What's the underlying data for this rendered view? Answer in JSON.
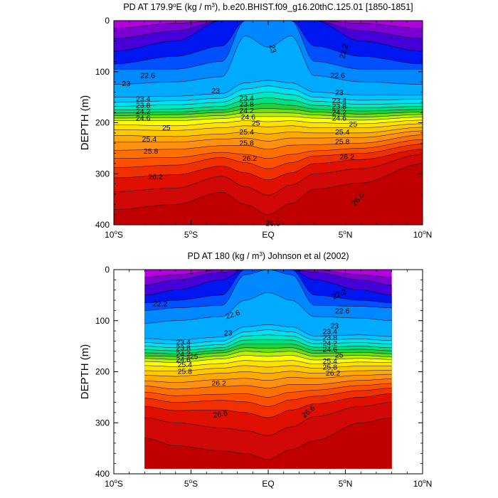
{
  "figure": {
    "panels": [
      {
        "title_main": "PD AT 179.9",
        "title_deg": "o",
        "title_rest": "E (kg / m",
        "title_sup": "3",
        "title_tail": "), b.e20.BHIST.f09_g16.20thC.125.01 [1850-1851]"
      },
      {
        "title_main": "PD AT 180 (kg / m",
        "title_sup": "3",
        "title_tail": ") Johnson et al (2002)"
      }
    ]
  },
  "chart_data": [
    {
      "type": "heatmap",
      "subtype": "filled-contour",
      "title": "PD AT 179.9°E (kg / m³), b.e20.BHIST.f09_g16.20thC.125.01 [1850-1851]",
      "xlabel": "",
      "ylabel": "DEPTH (m)",
      "xlim": [
        -10,
        10
      ],
      "ylim": [
        400,
        0
      ],
      "x_ticks": [
        -10,
        -5,
        0,
        5,
        10
      ],
      "x_tick_labels": [
        {
          "num": "10",
          "sup": "o",
          "hemi": "S"
        },
        {
          "num": "5",
          "sup": "o",
          "hemi": "S"
        },
        {
          "num": "EQ",
          "sup": "",
          "hemi": ""
        },
        {
          "num": "5",
          "sup": "o",
          "hemi": "N"
        },
        {
          "num": "10",
          "sup": "o",
          "hemi": "N"
        }
      ],
      "y_ticks": [
        0,
        100,
        200,
        300,
        400
      ],
      "data_x_range": [
        -10,
        10
      ],
      "depth_max": 400,
      "contour_levels": [
        21.8,
        22.0,
        22.2,
        22.4,
        22.6,
        22.8,
        23.0,
        23.2,
        23.4,
        23.6,
        23.8,
        24.0,
        24.2,
        24.4,
        24.6,
        24.8,
        25.0,
        25.2,
        25.4,
        25.6,
        25.8,
        26.0,
        26.2,
        26.4,
        26.6
      ],
      "contour_depths": [
        {
          "lat": -10,
          "depths": [
            0,
            15,
            35,
            60,
            85,
            95,
            125,
            150,
            160,
            168,
            175,
            181,
            186,
            191,
            196,
            204,
            214,
            225,
            238,
            254,
            270,
            288,
            308,
            335,
            370
          ]
        },
        {
          "lat": -6,
          "depths": [
            0,
            5,
            20,
            40,
            70,
            95,
            120,
            148,
            157,
            165,
            173,
            179,
            184,
            190,
            196,
            206,
            215,
            227,
            238,
            252,
            268,
            283,
            302,
            328,
            360
          ]
        },
        {
          "lat": -3,
          "depths": [
            0,
            0,
            0,
            0,
            50,
            80,
            110,
            143,
            152,
            160,
            168,
            175,
            180,
            186,
            192,
            200,
            210,
            222,
            232,
            245,
            258,
            268,
            285,
            305,
            336
          ]
        },
        {
          "lat": -1.5,
          "depths": [
            0,
            0,
            0,
            0,
            0,
            0,
            30,
            122,
            134,
            145,
            156,
            166,
            174,
            181,
            188,
            196,
            206,
            218,
            230,
            244,
            262,
            278,
            298,
            325,
            360
          ]
        },
        {
          "lat": 0,
          "depths": [
            0,
            0,
            0,
            0,
            0,
            0,
            52,
            117,
            128,
            140,
            151,
            162,
            172,
            180,
            188,
            198,
            208,
            222,
            236,
            252,
            270,
            290,
            312,
            342,
            380
          ]
        },
        {
          "lat": 1.5,
          "depths": [
            0,
            0,
            0,
            0,
            0,
            0,
            30,
            122,
            134,
            145,
            156,
            166,
            174,
            181,
            188,
            196,
            206,
            218,
            230,
            244,
            262,
            278,
            298,
            322,
            358
          ]
        },
        {
          "lat": 3,
          "depths": [
            0,
            0,
            0,
            0,
            50,
            80,
            108,
            140,
            150,
            158,
            166,
            173,
            179,
            185,
            191,
            200,
            210,
            220,
            230,
            243,
            255,
            265,
            280,
            300,
            330
          ]
        },
        {
          "lat": 6,
          "depths": [
            0,
            5,
            20,
            40,
            70,
            95,
            120,
            146,
            156,
            164,
            171,
            177,
            183,
            189,
            195,
            202,
            210,
            220,
            229,
            240,
            250,
            260,
            272,
            290,
            318
          ]
        },
        {
          "lat": 10,
          "depths": [
            0,
            15,
            35,
            60,
            85,
            95,
            125,
            146,
            154,
            162,
            168,
            174,
            179,
            184,
            189,
            195,
            202,
            209,
            216,
            224,
            233,
            242,
            252,
            262,
            280
          ]
        }
      ],
      "contour_labels": [
        {
          "text": "23",
          "lat": 0.3,
          "depth": 55,
          "angle": 75
        },
        {
          "text": "22.2",
          "lat": 4.9,
          "depth": 60,
          "angle": -75
        },
        {
          "text": "22.6",
          "lat": -7.8,
          "depth": 107,
          "angle": 0
        },
        {
          "text": "22.6",
          "lat": 4.5,
          "depth": 107,
          "angle": 0
        },
        {
          "text": "23",
          "lat": -9.2,
          "depth": 123,
          "angle": 0
        },
        {
          "text": "23",
          "lat": -3.4,
          "depth": 137,
          "angle": 0
        },
        {
          "text": "23",
          "lat": 4.6,
          "depth": 141,
          "angle": 0
        },
        {
          "text": "23.4",
          "lat": -8.1,
          "depth": 153,
          "angle": 0
        },
        {
          "text": "23.8",
          "lat": -8.1,
          "depth": 166,
          "angle": 0
        },
        {
          "text": "24.2",
          "lat": -8.1,
          "depth": 178,
          "angle": 0
        },
        {
          "text": "24.6",
          "lat": -8.1,
          "depth": 191,
          "angle": 0
        },
        {
          "text": "25",
          "lat": -6.6,
          "depth": 210,
          "angle": 0
        },
        {
          "text": "25.4",
          "lat": -7.7,
          "depth": 232,
          "angle": 0
        },
        {
          "text": "25.8",
          "lat": -7.6,
          "depth": 256,
          "angle": 0
        },
        {
          "text": "26.2",
          "lat": -7.3,
          "depth": 306,
          "angle": 0
        },
        {
          "text": "23.4",
          "lat": -1.4,
          "depth": 152,
          "angle": 0
        },
        {
          "text": "23.8",
          "lat": -1.4,
          "depth": 164,
          "angle": 0
        },
        {
          "text": "24.2",
          "lat": -1.4,
          "depth": 176,
          "angle": 0
        },
        {
          "text": "24.6",
          "lat": -1.3,
          "depth": 189,
          "angle": 0
        },
        {
          "text": "25",
          "lat": -0.8,
          "depth": 201,
          "angle": 0
        },
        {
          "text": "25.4",
          "lat": -1.4,
          "depth": 218,
          "angle": 0
        },
        {
          "text": "25.8",
          "lat": -1.4,
          "depth": 240,
          "angle": 0
        },
        {
          "text": "26.2",
          "lat": -1.2,
          "depth": 270,
          "angle": 0
        },
        {
          "text": "23.4",
          "lat": 4.6,
          "depth": 157,
          "angle": 0
        },
        {
          "text": "23.8",
          "lat": 4.6,
          "depth": 168,
          "angle": 0
        },
        {
          "text": "24.2",
          "lat": 4.6,
          "depth": 180,
          "angle": 0
        },
        {
          "text": "24.6",
          "lat": 4.6,
          "depth": 191,
          "angle": 0
        },
        {
          "text": "25",
          "lat": 5.5,
          "depth": 203,
          "angle": 0
        },
        {
          "text": "25.4",
          "lat": 4.8,
          "depth": 218,
          "angle": 0
        },
        {
          "text": "25.8",
          "lat": 4.8,
          "depth": 237,
          "angle": 0
        },
        {
          "text": "26.2",
          "lat": 5.1,
          "depth": 267,
          "angle": 0
        },
        {
          "text": "26.6",
          "lat": 5.8,
          "depth": 350,
          "angle": -48
        },
        {
          "text": "26.6",
          "lat": 0.3,
          "depth": 397,
          "angle": 0
        }
      ]
    },
    {
      "type": "heatmap",
      "subtype": "filled-contour",
      "title": "PD AT 180 (kg / m³) Johnson et al (2002)",
      "xlabel": "",
      "ylabel": "DEPTH (m)",
      "xlim": [
        -10,
        10
      ],
      "ylim": [
        400,
        0
      ],
      "x_ticks": [
        -10,
        -5,
        0,
        5,
        10
      ],
      "x_tick_labels": [
        {
          "num": "10",
          "sup": "o",
          "hemi": "S"
        },
        {
          "num": "5",
          "sup": "o",
          "hemi": "S"
        },
        {
          "num": "EQ",
          "sup": "",
          "hemi": ""
        },
        {
          "num": "5",
          "sup": "o",
          "hemi": "N"
        },
        {
          "num": "10",
          "sup": "o",
          "hemi": "N"
        }
      ],
      "y_ticks": [
        0,
        100,
        200,
        300,
        400
      ],
      "data_x_range": [
        -8,
        8
      ],
      "depth_max": 390,
      "contour_levels": [
        21.8,
        22.0,
        22.2,
        22.4,
        22.6,
        22.8,
        23.0,
        23.2,
        23.4,
        23.6,
        23.8,
        24.0,
        24.2,
        24.4,
        24.6,
        24.8,
        25.0,
        25.2,
        25.4,
        25.6,
        25.8,
        26.0,
        26.2,
        26.4,
        26.6
      ],
      "contour_depths": [
        {
          "lat": -8,
          "depths": [
            0,
            15,
            30,
            50,
            65,
            80,
            105,
            135,
            143,
            150,
            157,
            163,
            169,
            174,
            180,
            188,
            198,
            207,
            218,
            228,
            240,
            252,
            268,
            290,
            330
          ]
        },
        {
          "lat": -6,
          "depths": [
            0,
            10,
            20,
            40,
            60,
            75,
            100,
            138,
            146,
            153,
            159,
            165,
            170,
            176,
            182,
            190,
            199,
            209,
            221,
            234,
            247,
            260,
            276,
            300,
            345
          ]
        },
        {
          "lat": -3,
          "depths": [
            0,
            0,
            5,
            20,
            50,
            70,
            92,
            132,
            140,
            147,
            153,
            158,
            163,
            169,
            175,
            184,
            193,
            203,
            215,
            229,
            244,
            256,
            275,
            310,
            355
          ]
        },
        {
          "lat": -1.5,
          "depths": [
            0,
            0,
            0,
            0,
            0,
            10,
            60,
            112,
            122,
            130,
            138,
            146,
            153,
            160,
            168,
            178,
            188,
            200,
            213,
            227,
            243,
            259,
            280,
            315,
            360
          ]
        },
        {
          "lat": 0,
          "depths": [
            0,
            0,
            0,
            0,
            0,
            0,
            45,
            108,
            118,
            128,
            137,
            146,
            154,
            162,
            170,
            180,
            191,
            203,
            217,
            232,
            250,
            268,
            290,
            325,
            372
          ]
        },
        {
          "lat": 1.5,
          "depths": [
            0,
            0,
            0,
            0,
            0,
            10,
            60,
            112,
            122,
            130,
            138,
            146,
            153,
            160,
            168,
            178,
            188,
            199,
            211,
            225,
            240,
            255,
            275,
            308,
            352
          ]
        },
        {
          "lat": 3,
          "depths": [
            0,
            0,
            5,
            20,
            50,
            70,
            92,
            130,
            138,
            145,
            152,
            158,
            164,
            170,
            177,
            185,
            193,
            203,
            213,
            225,
            236,
            248,
            263,
            288,
            335
          ]
        },
        {
          "lat": 6,
          "depths": [
            0,
            10,
            20,
            40,
            60,
            72,
            95,
            128,
            136,
            143,
            150,
            156,
            162,
            168,
            174,
            181,
            189,
            198,
            207,
            217,
            227,
            237,
            250,
            268,
            300
          ]
        },
        {
          "lat": 8,
          "depths": [
            0,
            15,
            30,
            50,
            65,
            75,
            100,
            131,
            139,
            146,
            153,
            159,
            165,
            171,
            176,
            182,
            189,
            197,
            205,
            214,
            223,
            232,
            243,
            260,
            290
          ]
        }
      ],
      "contour_labels": [
        {
          "text": "22.2",
          "lat": -7.0,
          "depth": 67,
          "angle": 0
        },
        {
          "text": "22.2",
          "lat": 4.6,
          "depth": 48,
          "angle": -25
        },
        {
          "text": "22.6",
          "lat": -2.3,
          "depth": 88,
          "angle": -18
        },
        {
          "text": "22.6",
          "lat": 4.8,
          "depth": 81,
          "angle": 0
        },
        {
          "text": "23",
          "lat": -2.6,
          "depth": 124,
          "angle": 0
        },
        {
          "text": "23",
          "lat": 4.3,
          "depth": 110,
          "angle": 0
        },
        {
          "text": "23.4",
          "lat": 4.0,
          "depth": 121,
          "angle": 0
        },
        {
          "text": "23.8",
          "lat": 4.0,
          "depth": 133,
          "angle": 0
        },
        {
          "text": "24.2",
          "lat": 4.0,
          "depth": 144,
          "angle": 0
        },
        {
          "text": "24.6",
          "lat": 4.0,
          "depth": 156,
          "angle": 0
        },
        {
          "text": "25",
          "lat": 4.6,
          "depth": 167,
          "angle": 0
        },
        {
          "text": "25.4",
          "lat": 4.0,
          "depth": 179,
          "angle": 0
        },
        {
          "text": "25.8",
          "lat": 4.0,
          "depth": 191,
          "angle": 0
        },
        {
          "text": "26.2",
          "lat": 4.2,
          "depth": 203,
          "angle": 0
        },
        {
          "text": "23.4",
          "lat": -5.5,
          "depth": 142,
          "angle": 0
        },
        {
          "text": "23.8",
          "lat": -5.5,
          "depth": 153,
          "angle": 0
        },
        {
          "text": "24.2",
          "lat": -5.5,
          "depth": 165,
          "angle": 0
        },
        {
          "text": "24.6",
          "lat": -5.5,
          "depth": 176,
          "angle": 0
        },
        {
          "text": "25",
          "lat": -4.8,
          "depth": 170,
          "angle": 0
        },
        {
          "text": "25.4",
          "lat": -5.4,
          "depth": 186,
          "angle": 0
        },
        {
          "text": "25.8",
          "lat": -5.4,
          "depth": 199,
          "angle": 0
        },
        {
          "text": "26.2",
          "lat": -3.2,
          "depth": 222,
          "angle": 0
        },
        {
          "text": "26.6",
          "lat": -3.1,
          "depth": 283,
          "angle": -10
        },
        {
          "text": "26.6",
          "lat": 2.6,
          "depth": 278,
          "angle": -40
        }
      ]
    }
  ]
}
